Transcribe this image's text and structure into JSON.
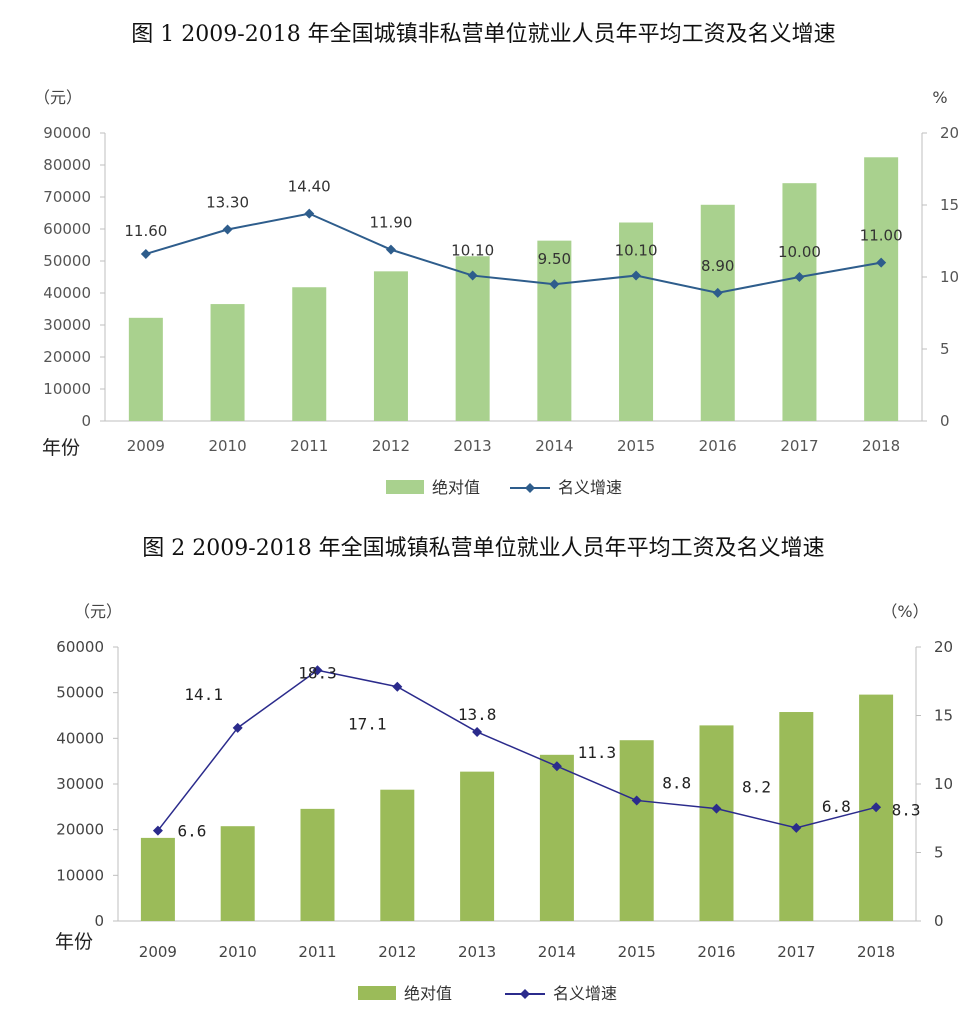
{
  "figures": [
    {
      "id": "chart1",
      "title": "图 1 2009-2018 年全国城镇非私营单位就业人员年平均工资及名义增速",
      "left_unit": "（元）",
      "right_unit": "%",
      "x_axis_label": "年份",
      "legend": [
        "绝对值",
        "名义增速"
      ],
      "bar_color": "#a9d18e",
      "line_color": "#2e5d8c",
      "left_ticks": [
        "0",
        "10000",
        "20000",
        "30000",
        "40000",
        "50000",
        "60000",
        "70000",
        "80000",
        "90000"
      ],
      "right_ticks": [
        "0",
        "5",
        "10",
        "15",
        "20"
      ],
      "growth_labels": [
        "11.60",
        "13.30",
        "14.40",
        "11.90",
        "10.10",
        "9.50",
        "10.10",
        "8.90",
        "10.00",
        "11.00"
      ]
    },
    {
      "id": "chart2",
      "title": "图 2 2009-2018 年全国城镇私营单位就业人员年平均工资及名义增速",
      "left_unit": "（元）",
      "right_unit": "（%）",
      "x_axis_label": "年份",
      "legend": [
        "绝对值",
        "名义增速"
      ],
      "bar_color": "#9bbb59",
      "line_color": "#2b2b8c",
      "left_ticks": [
        "0",
        "10000",
        "20000",
        "30000",
        "40000",
        "50000",
        "60000"
      ],
      "right_ticks": [
        "0",
        "5",
        "10",
        "15",
        "20"
      ],
      "growth_labels": [
        "6.6",
        "14.1",
        "18.3",
        "17.1",
        "13.8",
        "11.3",
        "8.8",
        "8.2",
        "6.8",
        "8.3"
      ]
    }
  ],
  "chart_data": [
    {
      "type": "bar",
      "title": "图 1 2009-2018 年全国城镇非私营单位就业人员年平均工资及名义增速",
      "xlabel": "年份",
      "ylabel": "（元）",
      "y2label": "%",
      "categories": [
        "2009",
        "2010",
        "2011",
        "2012",
        "2013",
        "2014",
        "2015",
        "2016",
        "2017",
        "2018"
      ],
      "ylim": [
        0,
        90000
      ],
      "y2lim": [
        0,
        20
      ],
      "grid": false,
      "legend_position": "bottom",
      "series": [
        {
          "name": "绝对值",
          "type": "bar",
          "axis": "left",
          "values": [
            32244,
            36539,
            41799,
            46769,
            51483,
            56360,
            62029,
            67569,
            74318,
            82413
          ]
        },
        {
          "name": "名义增速",
          "type": "line",
          "axis": "right",
          "values": [
            11.6,
            13.3,
            14.4,
            11.9,
            10.1,
            9.5,
            10.1,
            8.9,
            10.0,
            11.0
          ]
        }
      ]
    },
    {
      "type": "bar",
      "title": "图 2 2009-2018 年全国城镇私营单位就业人员年平均工资及名义增速",
      "xlabel": "年份",
      "ylabel": "（元）",
      "y2label": "（%）",
      "categories": [
        "2009",
        "2010",
        "2011",
        "2012",
        "2013",
        "2014",
        "2015",
        "2016",
        "2017",
        "2018"
      ],
      "ylim": [
        0,
        60000
      ],
      "y2lim": [
        0,
        20
      ],
      "grid": false,
      "legend_position": "bottom",
      "series": [
        {
          "name": "绝对值",
          "type": "bar",
          "axis": "left",
          "values": [
            18199,
            20759,
            24556,
            28752,
            32706,
            36390,
            39589,
            42833,
            45761,
            49575
          ]
        },
        {
          "name": "名义增速",
          "type": "line",
          "axis": "right",
          "values": [
            6.6,
            14.1,
            18.3,
            17.1,
            13.8,
            11.3,
            8.8,
            8.2,
            6.8,
            8.3
          ]
        }
      ]
    }
  ]
}
